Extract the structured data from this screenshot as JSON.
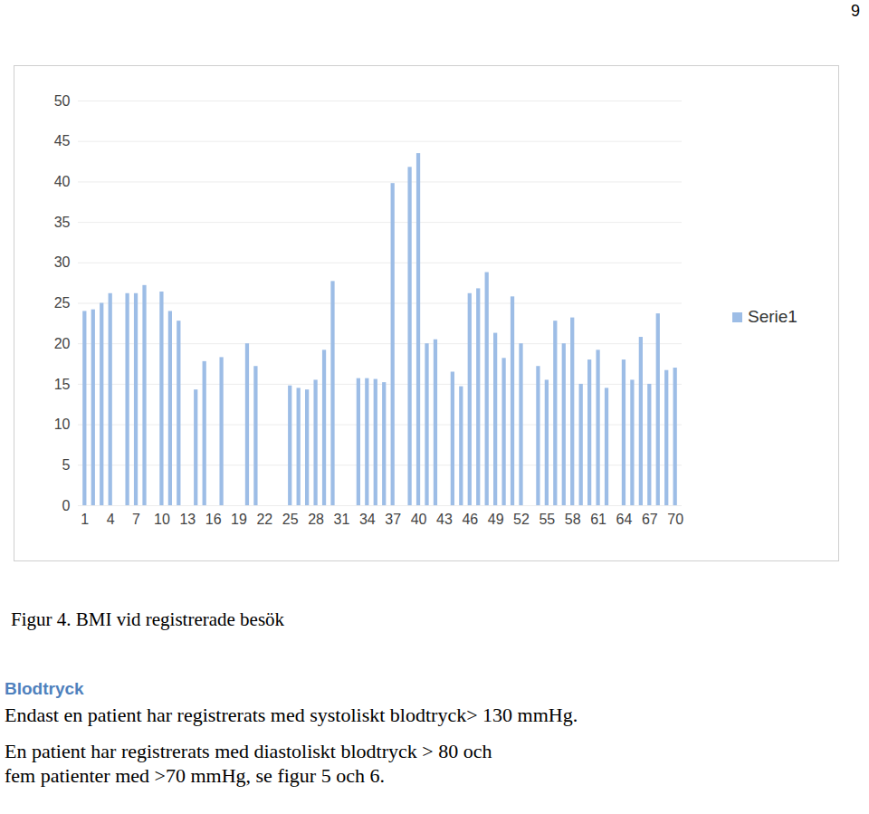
{
  "chart_data": {
    "type": "bar",
    "categories": [
      1,
      null,
      null,
      4,
      null,
      null,
      7,
      null,
      null,
      10,
      null,
      null,
      13,
      null,
      null,
      16,
      null,
      null,
      19,
      null,
      null,
      22,
      null,
      null,
      25,
      null,
      null,
      28,
      null,
      null,
      31,
      null,
      null,
      34,
      null,
      null,
      37,
      null,
      null,
      40,
      null,
      null,
      43,
      null,
      null,
      46,
      null,
      null,
      49,
      null,
      null,
      52,
      null,
      null,
      55,
      null,
      null,
      58,
      null,
      null,
      61,
      null,
      null,
      64,
      null,
      null,
      67,
      null,
      null,
      70
    ],
    "series": [
      {
        "name": "Serie1",
        "color": "#9dbde6",
        "values": [
          24,
          24.2,
          25,
          26.2,
          null,
          26.2,
          26.2,
          27.2,
          null,
          26.4,
          24,
          22.8,
          null,
          14.3,
          17.8,
          null,
          18.3,
          null,
          null,
          20,
          17.2,
          null,
          null,
          null,
          14.8,
          14.5,
          14.3,
          15.5,
          19.2,
          27.7,
          null,
          null,
          15.7,
          15.7,
          15.6,
          15.2,
          39.8,
          null,
          41.8,
          43.5,
          20,
          20.5,
          null,
          16.5,
          14.7,
          26.2,
          26.8,
          28.8,
          21.3,
          18.2,
          25.8,
          20,
          null,
          17.2,
          15.5,
          22.8,
          20,
          23.2,
          15,
          18,
          19.2,
          14.5,
          null,
          18,
          15.5,
          20.8,
          15,
          23.7,
          16.7,
          17
        ]
      }
    ],
    "ylim": [
      0,
      50
    ],
    "yticks": [
      0,
      5,
      10,
      15,
      20,
      25,
      30,
      35,
      40,
      45,
      50
    ],
    "grid": true,
    "legend": "right"
  },
  "document": {
    "page_number": "9",
    "caption": "Figur 4. BMI vid registrerade besök",
    "heading": "Blodtryck",
    "paragraphs": [
      [
        "Endast en patient har registrerats med systoliskt blodtryck> 130 mmHg."
      ],
      [
        "En patient har registrerats med diastoliskt blodtryck > 80 och",
        "fem patienter med >70 mmHg, se figur 5 och 6."
      ]
    ]
  }
}
